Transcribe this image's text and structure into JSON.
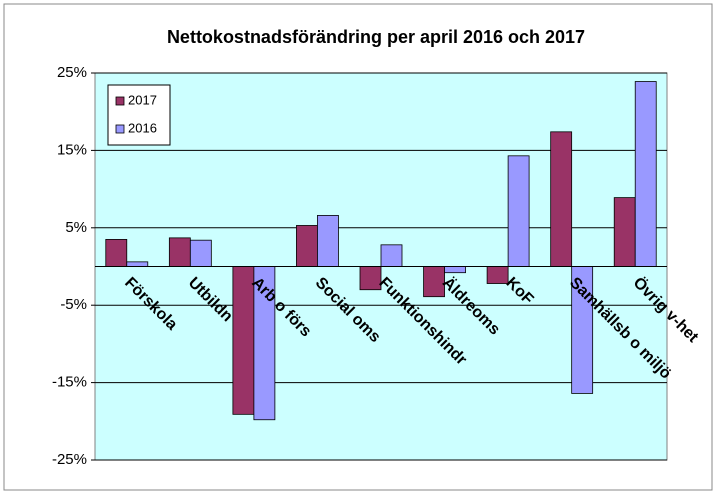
{
  "chart_data": {
    "type": "bar",
    "title": "Nettokostnadsförändring per april 2016 och 2017",
    "categories": [
      "Förskola",
      "Utbildn",
      "Arb o förs",
      "Social oms",
      "Funktionshindr",
      "Äldreoms",
      "KoF",
      "Samhällsb o miljö",
      "Övrig v-het"
    ],
    "series": [
      {
        "name": "2017",
        "color": "#993366",
        "values": [
          3.5,
          3.7,
          -19.1,
          5.3,
          -3.0,
          -3.9,
          -2.2,
          17.4,
          8.9
        ]
      },
      {
        "name": "2016",
        "color": "#9999ff",
        "values": [
          0.6,
          3.4,
          -19.8,
          6.6,
          2.8,
          -0.8,
          14.3,
          -16.4,
          23.9
        ]
      }
    ],
    "ylim": [
      -25,
      25
    ],
    "yticks": [
      {
        "value": 25,
        "label": "25%"
      },
      {
        "value": 15,
        "label": "15%"
      },
      {
        "value": 5,
        "label": "5%"
      },
      {
        "value": -5,
        "label": "-5%"
      },
      {
        "value": -15,
        "label": "-15%"
      },
      {
        "value": -25,
        "label": "-25%"
      }
    ],
    "grid": true,
    "legend": "top-left"
  }
}
